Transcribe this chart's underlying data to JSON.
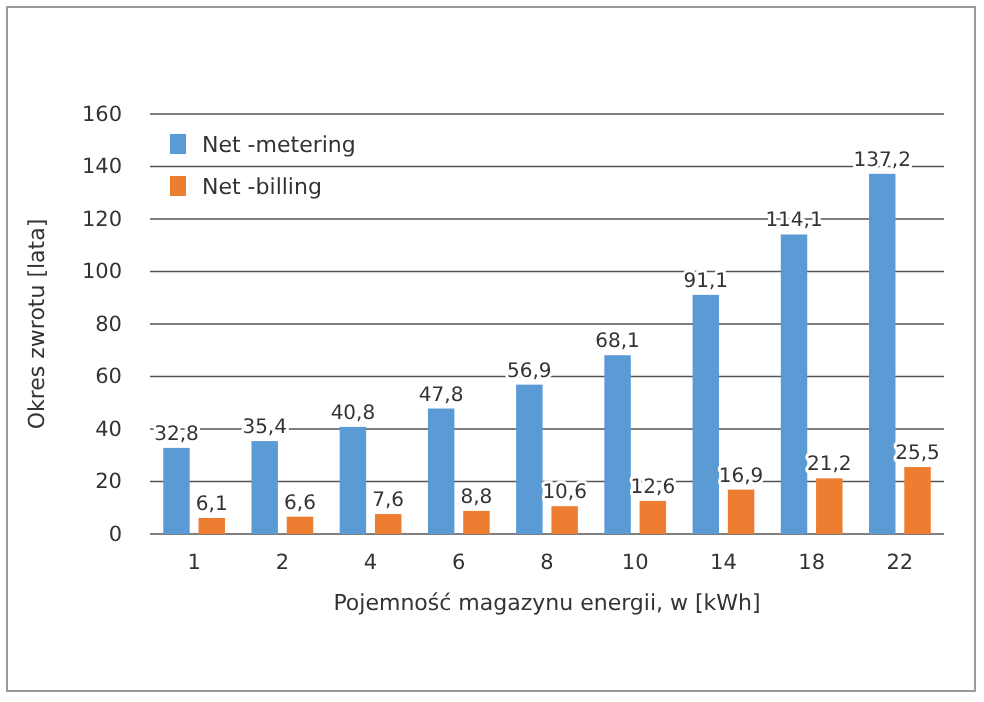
{
  "chart_data": {
    "type": "bar",
    "xlabel": "Pojemność magazynu energii, w [kWh]",
    "ylabel": "Okres zwrotu [lata]",
    "categories": [
      "1",
      "2",
      "4",
      "6",
      "8",
      "10",
      "14",
      "18",
      "22"
    ],
    "series": [
      {
        "name": "Net -metering",
        "color": "#5b9bd5",
        "values": [
          32.8,
          35.4,
          40.8,
          47.8,
          56.9,
          68.1,
          91.1,
          114.1,
          137.2
        ],
        "value_labels": [
          "32,8",
          "35,4",
          "40,8",
          "47,8",
          "56,9",
          "68,1",
          "91,1",
          "114,1",
          "137,2"
        ]
      },
      {
        "name": "Net -billing",
        "color": "#ed7d31",
        "values": [
          6.1,
          6.6,
          7.6,
          8.8,
          10.6,
          12.6,
          16.9,
          21.2,
          25.5
        ],
        "value_labels": [
          "6,1",
          "6,6",
          "7,6",
          "8,8",
          "10,6",
          "12,6",
          "16,9",
          "21,2",
          "25,5"
        ]
      }
    ],
    "ylim": [
      0,
      160
    ],
    "yticks": [
      0,
      20,
      40,
      60,
      80,
      100,
      120,
      140,
      160
    ],
    "grid": "y",
    "legend": "top left"
  }
}
